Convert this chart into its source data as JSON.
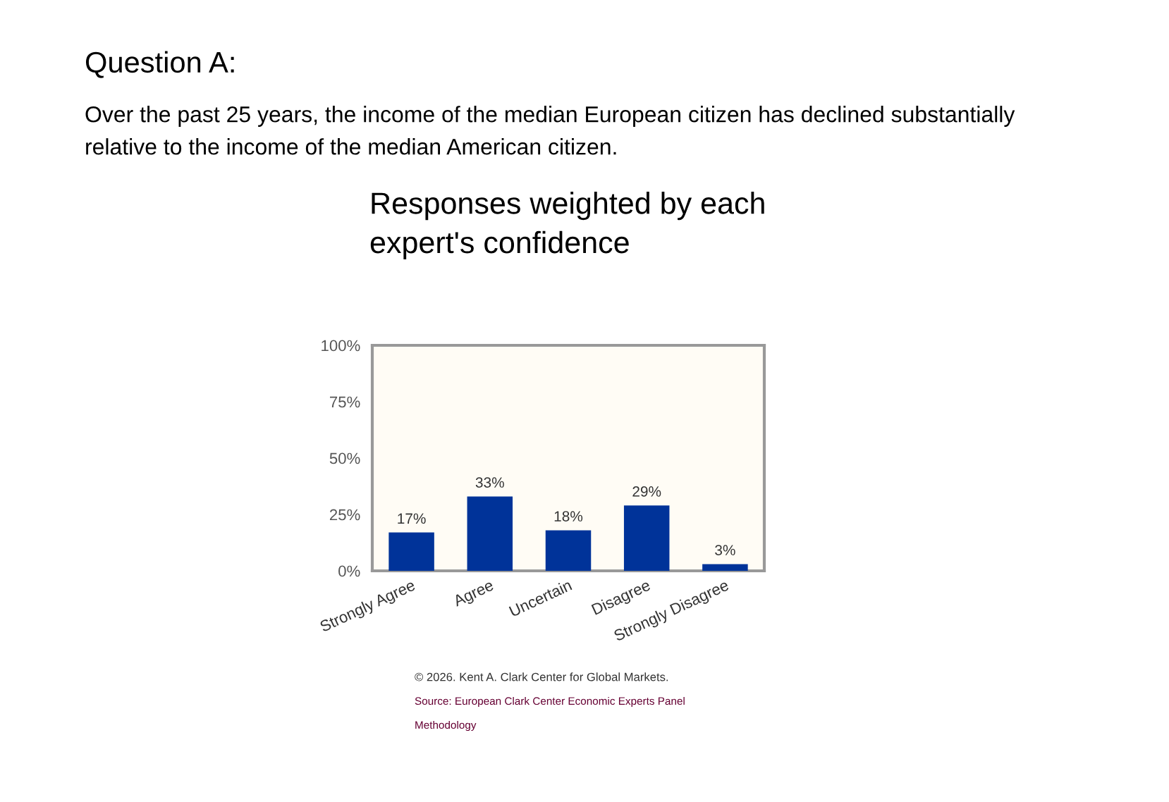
{
  "chart_data": {
    "type": "bar",
    "title": "Responses weighted by each\nexpert's confidence",
    "categories": [
      "Strongly Agree",
      "Agree",
      "Uncertain",
      "Disagree",
      "Strongly Disagree"
    ],
    "values": [
      17,
      33,
      18,
      29,
      3
    ],
    "value_labels": [
      "17%",
      "33%",
      "18%",
      "29%",
      "3%"
    ],
    "color": "#003399",
    "ylim": [
      0,
      100
    ],
    "yticks": [
      {
        "value": 0,
        "label": "0%"
      },
      {
        "value": 25,
        "label": "25%"
      },
      {
        "value": 50,
        "label": "50%"
      },
      {
        "value": 75,
        "label": "75%"
      },
      {
        "value": 100,
        "label": "100%"
      }
    ],
    "grid": false,
    "annotations": [
      "Question A:",
      "Over the past 25 years, the income of the median European citizen has declined substantially\nrelative to the income of the median American citizen.",
      "© 2026. Kent A. Clark Center for Global Markets.",
      "Source: European Clark Center Economic Experts Panel",
      "Methodology"
    ]
  }
}
